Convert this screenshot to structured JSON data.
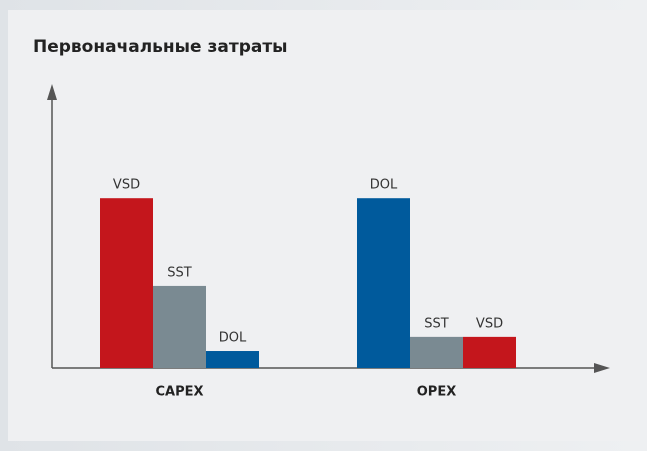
{
  "chart_data": {
    "type": "bar",
    "title": "Первоначальные затраты",
    "categories": [
      "CAPEX",
      "OPEX"
    ],
    "groups": [
      {
        "bars": [
          {
            "name": "VSD",
            "color": "#c4161c",
            "value": 60
          },
          {
            "name": "SST",
            "color": "#7a8a92",
            "value": 29
          },
          {
            "name": "DOL",
            "color": "#005a9c",
            "value": 6
          }
        ]
      },
      {
        "bars": [
          {
            "name": "DOL",
            "color": "#005a9c",
            "value": 60
          },
          {
            "name": "SST",
            "color": "#7a8a92",
            "value": 11
          },
          {
            "name": "VSD",
            "color": "#c4161c",
            "value": 11
          }
        ]
      }
    ],
    "ylim": [
      0,
      100
    ]
  }
}
